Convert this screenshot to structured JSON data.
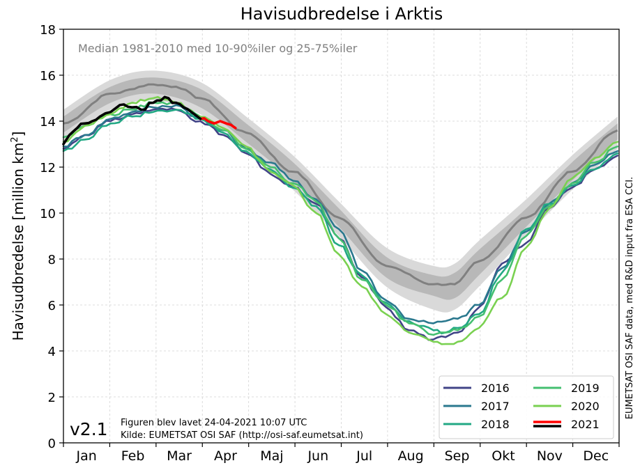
{
  "chart_data": {
    "type": "line",
    "title": "Havisudbredelse i Arktis",
    "ylabel_main": "Havisudbredelse [million km",
    "ylabel_sup": "2",
    "ylabel_end": "]",
    "xlabel": "",
    "ylim": [
      0,
      18
    ],
    "yticks": [
      0,
      2,
      4,
      6,
      8,
      10,
      12,
      14,
      16,
      18
    ],
    "months": [
      "Jan",
      "Feb",
      "Mar",
      "Apr",
      "Maj",
      "Jun",
      "Jul",
      "Aug",
      "Sep",
      "Okt",
      "Nov",
      "Dec"
    ],
    "grid": true,
    "median_note": "Median 1981-2010 med 10-90%iler og 25-75%iler",
    "version": "v2.1",
    "footer_line1": "Figuren blev lavet 24-04-2021 10:07 UTC",
    "footer_line2": "Kilde: EUMETSAT OSI SAF (http://osi-saf.eumetsat.int)",
    "side_credit": "EUMETSAT OSI SAF data, med R&D input fra ESA CCI.",
    "legend_position": "bottom-right",
    "x_unit": "day of year",
    "median": {
      "x": [
        1,
        32,
        60,
        75,
        91,
        121,
        152,
        182,
        213,
        244,
        258,
        274,
        305,
        335,
        365
      ],
      "values": [
        13.9,
        15.2,
        15.6,
        15.5,
        15.0,
        13.5,
        11.8,
        9.8,
        7.7,
        6.9,
        6.9,
        7.9,
        9.8,
        11.8,
        13.6
      ]
    },
    "band_25_75": {
      "x": [
        1,
        32,
        60,
        91,
        121,
        152,
        182,
        213,
        244,
        258,
        274,
        305,
        335,
        365
      ],
      "low": [
        13.5,
        14.8,
        15.2,
        14.6,
        13.1,
        11.4,
        9.4,
        7.2,
        6.4,
        6.3,
        7.3,
        9.4,
        11.4,
        13.2
      ],
      "high": [
        14.2,
        15.5,
        15.9,
        15.4,
        13.9,
        12.2,
        10.2,
        8.1,
        7.3,
        7.4,
        8.4,
        10.2,
        12.2,
        13.9
      ]
    },
    "band_10_90": {
      "x": [
        1,
        32,
        60,
        91,
        121,
        152,
        182,
        213,
        244,
        258,
        274,
        305,
        335,
        365
      ],
      "low": [
        13.1,
        14.5,
        14.9,
        14.3,
        12.8,
        11.0,
        9.0,
        6.8,
        5.8,
        5.8,
        6.8,
        9.0,
        11.0,
        12.8
      ],
      "high": [
        14.5,
        15.8,
        16.2,
        15.7,
        14.2,
        12.5,
        10.5,
        8.5,
        7.7,
        7.8,
        8.8,
        10.6,
        12.5,
        14.2
      ]
    },
    "series": [
      {
        "name": "2016",
        "color": "#414487",
        "x": [
          1,
          15,
          32,
          46,
          60,
          75,
          91,
          106,
          121,
          137,
          152,
          167,
          182,
          197,
          213,
          228,
          244,
          252,
          260,
          274,
          289,
          305,
          320,
          335,
          350,
          365
        ],
        "values": [
          12.8,
          13.4,
          14.0,
          14.3,
          14.5,
          14.5,
          14.0,
          13.4,
          12.6,
          11.7,
          11.1,
          10.4,
          8.9,
          7.2,
          5.9,
          4.9,
          4.5,
          4.6,
          4.8,
          5.9,
          7.8,
          8.7,
          10.2,
          11.1,
          11.9,
          12.5
        ]
      },
      {
        "name": "2017",
        "color": "#2a788e",
        "x": [
          1,
          15,
          32,
          46,
          60,
          75,
          91,
          106,
          121,
          137,
          152,
          167,
          182,
          197,
          213,
          228,
          244,
          252,
          260,
          274,
          289,
          305,
          320,
          335,
          350,
          365
        ],
        "values": [
          12.9,
          13.4,
          14.1,
          14.4,
          14.6,
          14.7,
          14.1,
          13.6,
          12.8,
          12.2,
          11.4,
          10.6,
          9.3,
          7.5,
          6.2,
          5.4,
          5.2,
          5.3,
          5.4,
          6.0,
          7.6,
          9.2,
          10.4,
          11.3,
          12.1,
          12.7
        ]
      },
      {
        "name": "2018",
        "color": "#22a884",
        "x": [
          1,
          15,
          32,
          46,
          60,
          75,
          91,
          106,
          121,
          137,
          152,
          167,
          182,
          197,
          213,
          228,
          244,
          252,
          260,
          274,
          289,
          305,
          320,
          335,
          350,
          365
        ],
        "values": [
          12.7,
          13.2,
          13.9,
          14.2,
          14.4,
          14.5,
          14.1,
          13.5,
          12.7,
          11.9,
          11.1,
          10.3,
          8.6,
          7.3,
          6.1,
          5.3,
          4.9,
          4.8,
          5.0,
          5.6,
          7.4,
          9.3,
          10.4,
          11.2,
          11.9,
          12.6
        ]
      },
      {
        "name": "2019",
        "color": "#44bf70",
        "x": [
          1,
          15,
          32,
          46,
          60,
          75,
          91,
          106,
          121,
          137,
          152,
          167,
          182,
          197,
          213,
          228,
          244,
          252,
          260,
          274,
          289,
          305,
          320,
          335,
          350,
          365
        ],
        "values": [
          13.3,
          13.8,
          14.3,
          14.5,
          14.8,
          14.8,
          14.2,
          13.6,
          12.8,
          12.0,
          11.3,
          10.5,
          8.9,
          7.1,
          6.0,
          5.2,
          4.7,
          4.8,
          4.9,
          5.5,
          7.1,
          9.0,
          10.3,
          11.3,
          12.2,
          12.9
        ]
      },
      {
        "name": "2020",
        "color": "#7ad151",
        "x": [
          1,
          15,
          32,
          46,
          60,
          75,
          91,
          106,
          121,
          137,
          152,
          167,
          182,
          197,
          213,
          228,
          244,
          252,
          260,
          274,
          289,
          305,
          320,
          335,
          350,
          365
        ],
        "values": [
          13.1,
          13.8,
          14.3,
          14.8,
          15.0,
          14.8,
          14.2,
          13.7,
          12.9,
          11.8,
          11.2,
          10.0,
          8.2,
          6.8,
          5.6,
          4.8,
          4.4,
          4.3,
          4.4,
          5.0,
          6.3,
          8.5,
          10.2,
          11.5,
          12.4,
          13.1
        ]
      },
      {
        "name": "2021",
        "color": "#ff0000",
        "x": [
          91,
          96,
          100,
          104,
          108,
          114
        ],
        "values": [
          14.1,
          14.0,
          13.9,
          14.0,
          13.9,
          13.7
        ]
      },
      {
        "name": "2021",
        "color": "#000000",
        "x": [
          1,
          5,
          10,
          15,
          20,
          25,
          32,
          38,
          46,
          52,
          60,
          65,
          70,
          75,
          80,
          85,
          91
        ],
        "values": [
          13.0,
          13.4,
          13.7,
          13.9,
          14.0,
          14.2,
          14.4,
          14.7,
          14.6,
          14.5,
          14.8,
          14.9,
          15.0,
          14.8,
          14.6,
          14.4,
          14.1
        ]
      }
    ],
    "legend": [
      {
        "name": "2016",
        "color": "#414487"
      },
      {
        "name": "2019",
        "color": "#44bf70"
      },
      {
        "name": "2017",
        "color": "#2a788e"
      },
      {
        "name": "2020",
        "color": "#7ad151"
      },
      {
        "name": "2018",
        "color": "#22a884"
      },
      {
        "name": "2021",
        "color": "#ff0000",
        "color2": "#000000"
      }
    ],
    "colors": {
      "median": "#808080",
      "band_inner": "#b8b8b8",
      "band_outer": "#d9d9d9",
      "grid": "#d3d3d3"
    }
  }
}
